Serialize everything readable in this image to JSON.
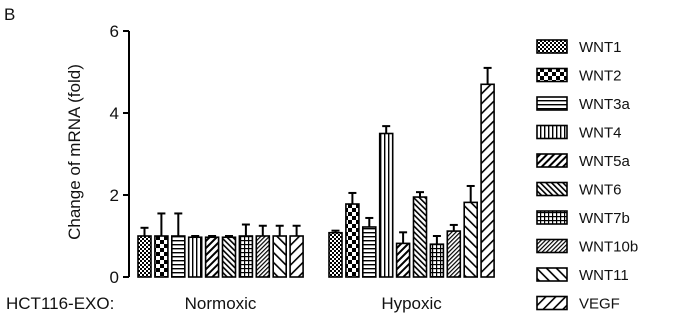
{
  "panel_label": "B",
  "chart_data": {
    "type": "bar",
    "ylabel": "Change of mRNA (fold)",
    "ylim": [
      0,
      6
    ],
    "yticks": [
      0,
      2,
      4,
      6
    ],
    "row_label": "HCT116-EXO:",
    "categories": [
      "Normoxic",
      "Hypoxic"
    ],
    "series": [
      {
        "name": "WNT1",
        "values": [
          1.0,
          1.08
        ],
        "errors": [
          0.2,
          0.05
        ],
        "pattern": "check"
      },
      {
        "name": "WNT2",
        "values": [
          1.0,
          1.78
        ],
        "errors": [
          0.55,
          0.27
        ],
        "pattern": "bigcheck"
      },
      {
        "name": "WNT3a",
        "values": [
          1.0,
          1.22
        ],
        "errors": [
          0.55,
          0.22
        ],
        "pattern": "hstripe"
      },
      {
        "name": "WNT4",
        "values": [
          0.97,
          3.5
        ],
        "errors": [
          0.03,
          0.18
        ],
        "pattern": "vstripe"
      },
      {
        "name": "WNT5a",
        "values": [
          0.97,
          0.82
        ],
        "errors": [
          0.03,
          0.27
        ],
        "pattern": "diag"
      },
      {
        "name": "WNT6",
        "values": [
          0.97,
          1.95
        ],
        "errors": [
          0.03,
          0.12
        ],
        "pattern": "diag2"
      },
      {
        "name": "WNT7b",
        "values": [
          1.0,
          0.8
        ],
        "errors": [
          0.28,
          0.2
        ],
        "pattern": "grid"
      },
      {
        "name": "WNT10b",
        "values": [
          1.0,
          1.12
        ],
        "errors": [
          0.25,
          0.15
        ],
        "pattern": "diag3"
      },
      {
        "name": "WNT11",
        "values": [
          1.0,
          1.82
        ],
        "errors": [
          0.25,
          0.4
        ],
        "pattern": "backdiag"
      },
      {
        "name": "VEGF",
        "values": [
          1.0,
          4.7
        ],
        "errors": [
          0.25,
          0.4
        ],
        "pattern": "diagwide"
      }
    ]
  }
}
